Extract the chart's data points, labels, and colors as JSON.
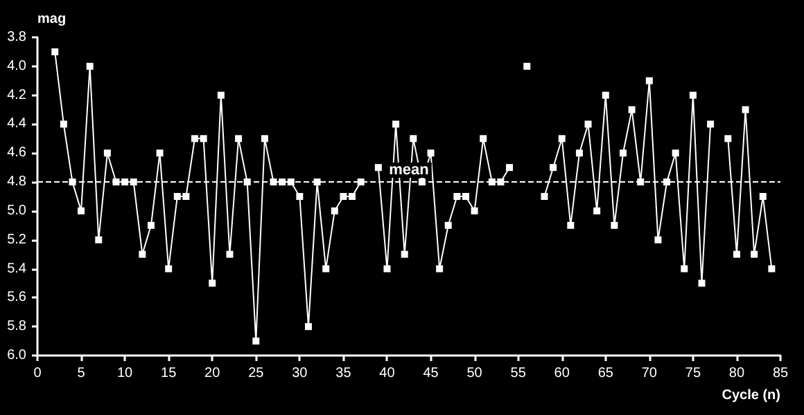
{
  "chart_data": {
    "type": "line",
    "xlabel": "Cycle (n)",
    "ylabel": "mag",
    "x": [
      2,
      3,
      4,
      5,
      6,
      7,
      8,
      9,
      10,
      11,
      12,
      13,
      14,
      15,
      16,
      17,
      18,
      19,
      20,
      21,
      22,
      23,
      24,
      25,
      26,
      27,
      28,
      29,
      30,
      31,
      32,
      33,
      34,
      35,
      36,
      37,
      38,
      39,
      40,
      41,
      42,
      43,
      44,
      45,
      46,
      47,
      48,
      49,
      50,
      51,
      52,
      53,
      54,
      55,
      56,
      57,
      58,
      59,
      60,
      61,
      62,
      63,
      64,
      65,
      66,
      67,
      68,
      69,
      70,
      71,
      72,
      73,
      74,
      75,
      76,
      77,
      78,
      79,
      80,
      81,
      82,
      83,
      84
    ],
    "series": [
      {
        "color": "#ffffff",
        "values": [
          3.9,
          4.4,
          4.8,
          5.0,
          4.0,
          5.2,
          4.6,
          4.8,
          4.8,
          4.8,
          5.3,
          5.1,
          4.6,
          5.4,
          4.9,
          4.9,
          4.5,
          4.5,
          5.5,
          4.2,
          5.3,
          4.5,
          4.8,
          5.9,
          4.5,
          4.8,
          4.8,
          4.8,
          4.9,
          5.8,
          4.8,
          5.4,
          5.0,
          4.9,
          4.9,
          4.8,
          null,
          4.7,
          5.4,
          4.4,
          5.3,
          4.5,
          4.8,
          4.6,
          5.4,
          5.1,
          4.9,
          4.9,
          5.0,
          4.5,
          4.8,
          4.8,
          4.7,
          null,
          4.0,
          null,
          4.9,
          4.7,
          4.5,
          5.1,
          4.6,
          4.4,
          5.0,
          4.2,
          5.1,
          4.6,
          4.3,
          4.8,
          4.1,
          5.2,
          4.8,
          4.6,
          5.4,
          4.2,
          5.5,
          4.4,
          null,
          4.5,
          5.3,
          4.3,
          5.3,
          4.9,
          5.4
        ]
      }
    ],
    "xlim": [
      0,
      85
    ],
    "xticks": [
      0,
      5,
      10,
      15,
      20,
      25,
      30,
      35,
      40,
      45,
      50,
      55,
      60,
      65,
      70,
      75,
      80,
      85
    ],
    "ylim": [
      6.0,
      3.8
    ],
    "yticks": [
      {
        "value": 3.8,
        "label": "3.8"
      },
      {
        "value": 4.0,
        "label": "4.0"
      },
      {
        "value": 4.2,
        "label": "4.2"
      },
      {
        "value": 4.4,
        "label": "4.4"
      },
      {
        "value": 4.6,
        "label": "4.6"
      },
      {
        "value": 4.8,
        "label": "4.8"
      },
      {
        "value": 5.0,
        "label": "5.0"
      },
      {
        "value": 5.2,
        "label": "5.2"
      },
      {
        "value": 5.4,
        "label": "5.4"
      },
      {
        "value": 5.6,
        "label": "5.6"
      },
      {
        "value": 5.8,
        "label": "5.8"
      },
      {
        "value": 6.0,
        "label": "6.0"
      }
    ],
    "ref_lines": [
      {
        "axis": "y",
        "value": 4.8,
        "label": "mean",
        "color": "#ffffff",
        "line_style": "dashed"
      }
    ],
    "grid": false,
    "marker": "square",
    "line_style": "solid"
  }
}
